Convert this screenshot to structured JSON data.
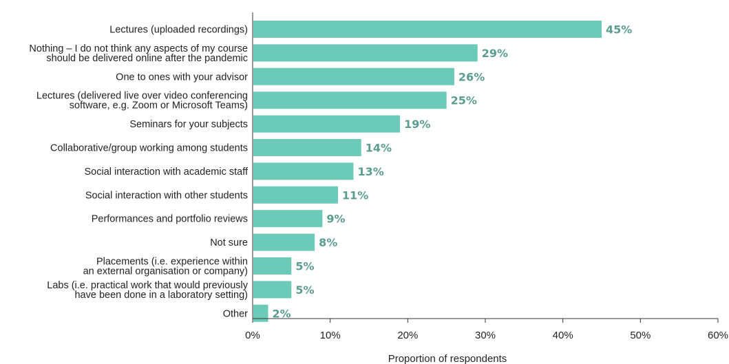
{
  "chart_data": {
    "type": "bar",
    "orientation": "horizontal",
    "title": "",
    "xlabel": "Proportion of respondents",
    "ylabel": "",
    "xlim": [
      0,
      60
    ],
    "x_ticks": [
      "0%",
      "10%",
      "20%",
      "30%",
      "40%",
      "50%",
      "60%"
    ],
    "grid": false,
    "bar_color": "#6ccbb8",
    "value_label_color": "#5a9c90",
    "categories": [
      [
        "Lectures (uploaded recordings)"
      ],
      [
        "Nothing – I do not think any aspects of my course",
        "should be delivered online after the pandemic"
      ],
      [
        "One to ones with your advisor"
      ],
      [
        "Lectures (delivered live over video conferencing",
        "software, e.g. Zoom or Microsoft Teams)"
      ],
      [
        "Seminars for your subjects"
      ],
      [
        "Collaborative/group working among students"
      ],
      [
        "Social interaction with academic staff"
      ],
      [
        "Social interaction with other students"
      ],
      [
        "Performances and portfolio reviews"
      ],
      [
        "Not sure"
      ],
      [
        "Placements (i.e. experience within",
        "an external organisation or company)"
      ],
      [
        "Labs (i.e. practical work that would previously",
        "have been done in a  laboratory setting)"
      ],
      [
        "Other"
      ]
    ],
    "values": [
      45,
      29,
      26,
      25,
      19,
      14,
      13,
      11,
      9,
      8,
      5,
      5,
      2
    ],
    "value_labels": [
      "45%",
      "29%",
      "26%",
      "25%",
      "19%",
      "14%",
      "13%",
      "11%",
      "9%",
      "8%",
      "5%",
      "5%",
      "2%"
    ]
  }
}
